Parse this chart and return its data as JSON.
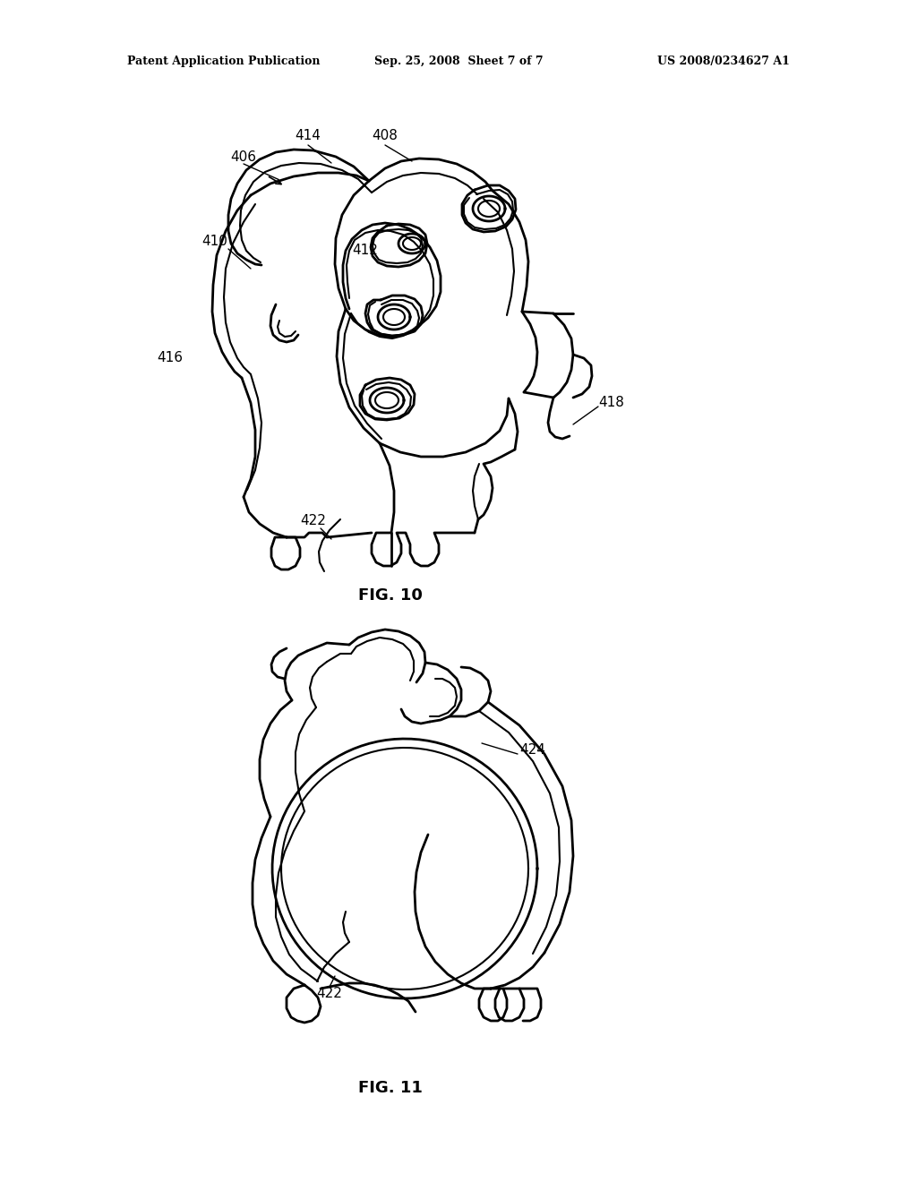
{
  "bg_color": "#ffffff",
  "line_color": "#000000",
  "header_left": "Patent Application Publication",
  "header_mid": "Sep. 25, 2008  Sheet 7 of 7",
  "header_right": "US 2008/0234627 A1",
  "fig10_label": "FIG. 10",
  "fig11_label": "FIG. 11",
  "header_fontsize": 9,
  "label_fontsize": 11,
  "caption_fontsize": 13
}
